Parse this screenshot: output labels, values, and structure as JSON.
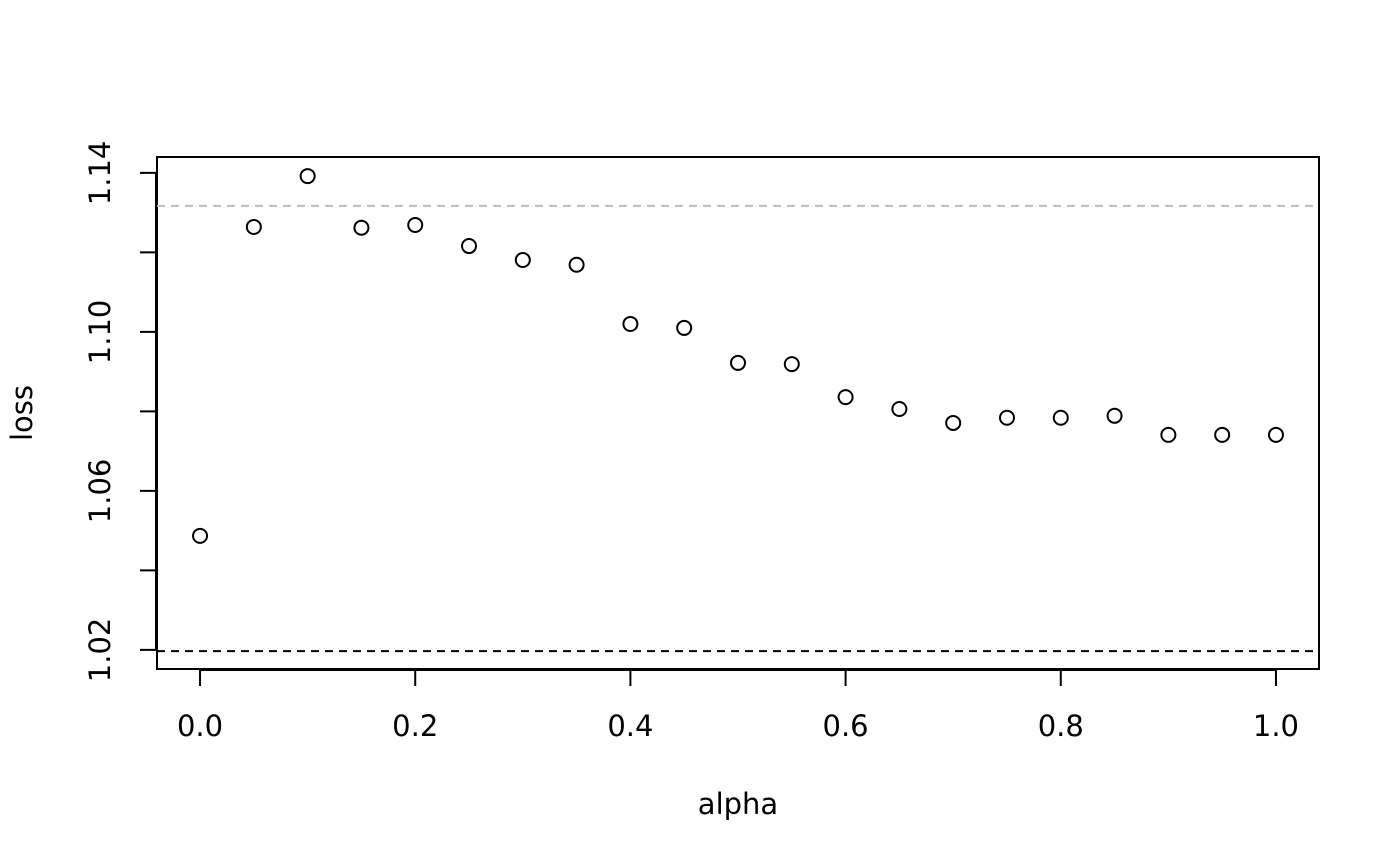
{
  "chart_data": {
    "type": "scatter",
    "xlabel": "alpha",
    "ylabel": "loss",
    "x": [
      0,
      0.05,
      0.1,
      0.15,
      0.2,
      0.25,
      0.3,
      0.35,
      0.4,
      0.45,
      0.5,
      0.55,
      0.6,
      0.65,
      0.7,
      0.75,
      0.8,
      0.85,
      0.9,
      0.95,
      1
    ],
    "values": [
      1.0487,
      1.1264,
      1.1392,
      1.1262,
      1.1269,
      1.1216,
      1.1181,
      1.1169,
      1.102,
      1.101,
      1.0922,
      1.0919,
      1.0836,
      1.0806,
      1.0771,
      1.0784,
      1.0784,
      1.0789,
      1.0741,
      1.0741,
      1.0741
    ],
    "color": "#000000",
    "xlim": [
      -0.04,
      1.04
    ],
    "ylim": [
      1.0152,
      1.144
    ],
    "xticks": [
      {
        "value": 0,
        "label": "0.0"
      },
      0.2,
      0.4,
      0.6,
      0.8,
      {
        "value": 1,
        "label": "1.0"
      }
    ],
    "yticks": [
      1.02,
      {
        "value": 1.04,
        "label": null
      },
      1.06,
      {
        "value": 1.08,
        "label": null
      },
      {
        "value": 1.1,
        "label": "1.10"
      },
      {
        "value": 1.12,
        "label": null
      },
      1.14
    ],
    "hlines": [
      {
        "value": 1.1317,
        "color": "#bebebe"
      },
      {
        "value": 1.0197,
        "color": "#000000"
      }
    ],
    "grid": false
  }
}
